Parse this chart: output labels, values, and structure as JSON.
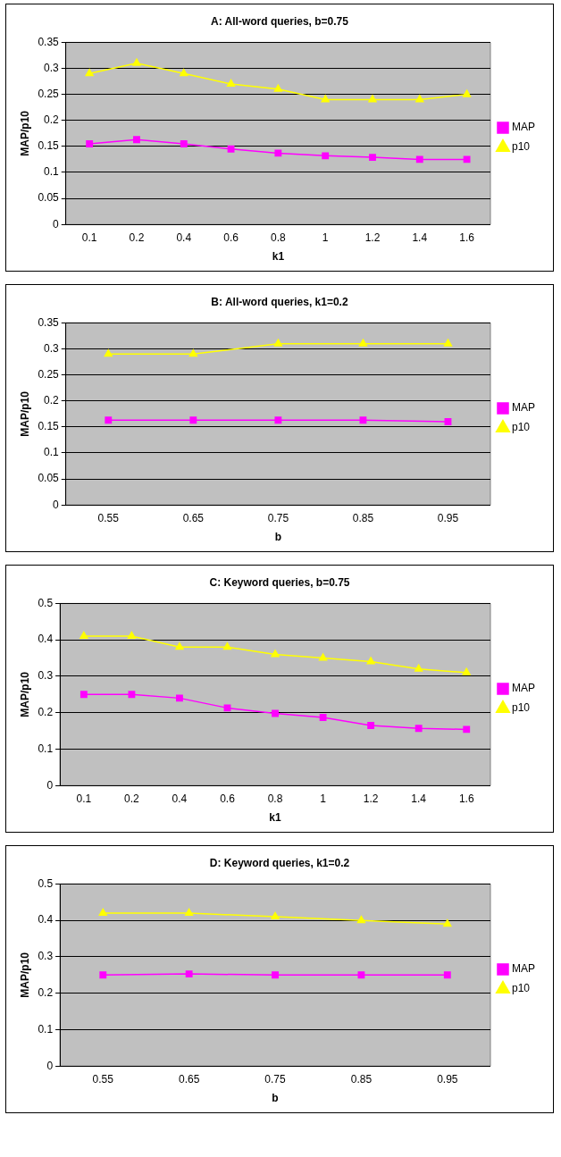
{
  "chart_data": [
    {
      "type": "line",
      "title": "A: All-word queries, b=0.75",
      "xlabel": "k1",
      "ylabel": "MAP/p10",
      "categories": [
        "0.1",
        "0.2",
        "0.4",
        "0.6",
        "0.8",
        "1",
        "1.2",
        "1.4",
        "1.6"
      ],
      "series": [
        {
          "name": "MAP",
          "color": "#ff00ff",
          "marker": "square",
          "values": [
            0.155,
            0.163,
            0.155,
            0.145,
            0.137,
            0.132,
            0.129,
            0.125,
            0.125
          ]
        },
        {
          "name": "p10",
          "color": "#ffff00",
          "marker": "triangle",
          "values": [
            0.29,
            0.31,
            0.29,
            0.27,
            0.26,
            0.24,
            0.24,
            0.24,
            0.25
          ]
        }
      ],
      "ylim": [
        0,
        0.35
      ],
      "yticks": [
        0,
        0.05,
        0.1,
        0.15,
        0.2,
        0.25,
        0.3,
        0.35
      ],
      "grid": "y",
      "legend": "right"
    },
    {
      "type": "line",
      "title": "B: All-word queries, k1=0.2",
      "xlabel": "b",
      "ylabel": "MAP/p10",
      "categories": [
        "0.55",
        "0.65",
        "0.75",
        "0.85",
        "0.95"
      ],
      "series": [
        {
          "name": "MAP",
          "color": "#ff00ff",
          "marker": "square",
          "values": [
            0.163,
            0.163,
            0.163,
            0.163,
            0.16
          ]
        },
        {
          "name": "p10",
          "color": "#ffff00",
          "marker": "triangle",
          "values": [
            0.29,
            0.29,
            0.31,
            0.31,
            0.31
          ]
        }
      ],
      "ylim": [
        0,
        0.35
      ],
      "yticks": [
        0,
        0.05,
        0.1,
        0.15,
        0.2,
        0.25,
        0.3,
        0.35
      ],
      "grid": "y",
      "legend": "right"
    },
    {
      "type": "line",
      "title": "C: Keyword queries, b=0.75",
      "xlabel": "k1",
      "ylabel": "MAP/p10",
      "categories": [
        "0.1",
        "0.2",
        "0.4",
        "0.6",
        "0.8",
        "1",
        "1.2",
        "1.4",
        "1.6"
      ],
      "series": [
        {
          "name": "MAP",
          "color": "#ff00ff",
          "marker": "square",
          "values": [
            0.25,
            0.25,
            0.24,
            0.213,
            0.198,
            0.187,
            0.165,
            0.157,
            0.154
          ]
        },
        {
          "name": "p10",
          "color": "#ffff00",
          "marker": "triangle",
          "values": [
            0.41,
            0.41,
            0.38,
            0.38,
            0.36,
            0.35,
            0.34,
            0.32,
            0.31
          ]
        }
      ],
      "ylim": [
        0,
        0.5
      ],
      "yticks": [
        0,
        0.1,
        0.2,
        0.3,
        0.4,
        0.5
      ],
      "grid": "y",
      "legend": "right"
    },
    {
      "type": "line",
      "title": "D: Keyword queries, k1=0.2",
      "xlabel": "b",
      "ylabel": "MAP/p10",
      "categories": [
        "0.55",
        "0.65",
        "0.75",
        "0.85",
        "0.95"
      ],
      "series": [
        {
          "name": "MAP",
          "color": "#ff00ff",
          "marker": "square",
          "values": [
            0.25,
            0.253,
            0.25,
            0.25,
            0.25
          ]
        },
        {
          "name": "p10",
          "color": "#ffff00",
          "marker": "triangle",
          "values": [
            0.42,
            0.42,
            0.41,
            0.4,
            0.39
          ]
        }
      ],
      "ylim": [
        0,
        0.5
      ],
      "yticks": [
        0,
        0.1,
        0.2,
        0.3,
        0.4,
        0.5
      ],
      "grid": "y",
      "legend": "right"
    }
  ]
}
